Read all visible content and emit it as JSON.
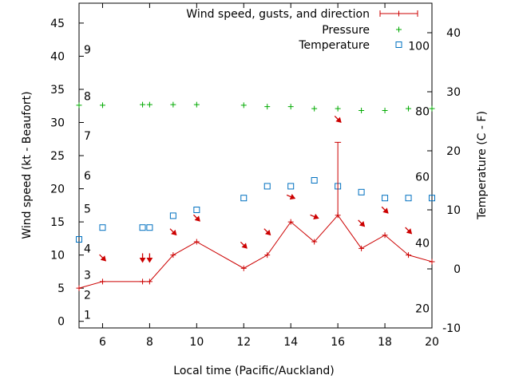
{
  "chart_data": {
    "type": "line",
    "xlabel": "Local time (Pacific/Auckland)",
    "ylabel_left": "Wind speed (kt - Beaufort)",
    "ylabel_right": "Temperature (C - F)",
    "xlim": [
      5,
      20
    ],
    "ylim_left": [
      -1,
      48
    ],
    "ylim_right": [
      -10,
      45
    ],
    "x_ticks": [
      6,
      8,
      10,
      12,
      14,
      16,
      18,
      20
    ],
    "y_left_ticks": [
      0,
      5,
      10,
      15,
      20,
      25,
      30,
      35,
      40,
      45
    ],
    "y_right_ticks": [
      -10,
      0,
      10,
      20,
      30,
      40
    ],
    "beaufort_labels": [
      {
        "label": "1",
        "kt": 1
      },
      {
        "label": "2",
        "kt": 4
      },
      {
        "label": "3",
        "kt": 7
      },
      {
        "label": "4",
        "kt": 11
      },
      {
        "label": "5",
        "kt": 17
      },
      {
        "label": "6",
        "kt": 22
      },
      {
        "label": "7",
        "kt": 28
      },
      {
        "label": "8",
        "kt": 34
      },
      {
        "label": "9",
        "kt": 41
      }
    ],
    "fahrenheit_labels": [
      {
        "label": "20",
        "c": -6.7
      },
      {
        "label": "40",
        "c": 4.4
      },
      {
        "label": "60",
        "c": 15.6
      },
      {
        "label": "80",
        "c": 26.7
      },
      {
        "label": "100",
        "c": 37.8
      }
    ],
    "legend": [
      {
        "label": "Wind speed, gusts, and direction",
        "color": "#cc0000",
        "marker": "errorbar"
      },
      {
        "label": "Pressure",
        "color": "#00aa00",
        "marker": "plus"
      },
      {
        "label": "Temperature",
        "color": "#0070c0",
        "marker": "square"
      }
    ],
    "series": [
      {
        "name": "Wind speed",
        "color": "#cc0000",
        "points": [
          {
            "x": 5,
            "y": 5
          },
          {
            "x": 6,
            "y": 6
          },
          {
            "x": 7.7,
            "y": 6
          },
          {
            "x": 8,
            "y": 6
          },
          {
            "x": 9,
            "y": 10
          },
          {
            "x": 10,
            "y": 12
          },
          {
            "x": 12,
            "y": 8
          },
          {
            "x": 13,
            "y": 10
          },
          {
            "x": 14,
            "y": 15
          },
          {
            "x": 15,
            "y": 12
          },
          {
            "x": 16,
            "y": 16,
            "gust": 27
          },
          {
            "x": 17,
            "y": 11
          },
          {
            "x": 18,
            "y": 13
          },
          {
            "x": 19,
            "y": 10
          },
          {
            "x": 20,
            "y": 9
          }
        ]
      },
      {
        "name": "Wind direction",
        "color": "#cc0000",
        "arrows": [
          {
            "x": 6,
            "y": 9.6,
            "dir": "SE"
          },
          {
            "x": 7.7,
            "y": 9.6,
            "dir": "S"
          },
          {
            "x": 8,
            "y": 9.6,
            "dir": "S"
          },
          {
            "x": 9,
            "y": 13.5,
            "dir": "SE"
          },
          {
            "x": 10,
            "y": 15.6,
            "dir": "SE"
          },
          {
            "x": 12,
            "y": 11.5,
            "dir": "SE"
          },
          {
            "x": 13,
            "y": 13.5,
            "dir": "SE"
          },
          {
            "x": 14,
            "y": 18.8,
            "dir": "ESE"
          },
          {
            "x": 15,
            "y": 15.8,
            "dir": "ESE"
          },
          {
            "x": 16,
            "y": 30.5,
            "dir": "SE"
          },
          {
            "x": 17,
            "y": 14.8,
            "dir": "SE"
          },
          {
            "x": 18,
            "y": 16.8,
            "dir": "SE"
          },
          {
            "x": 19,
            "y": 13.7,
            "dir": "SE"
          }
        ]
      },
      {
        "name": "Pressure",
        "color": "#00aa00",
        "points": [
          {
            "x": 5,
            "y": 32.6
          },
          {
            "x": 6,
            "y": 32.6
          },
          {
            "x": 7.7,
            "y": 32.7
          },
          {
            "x": 8,
            "y": 32.7
          },
          {
            "x": 9,
            "y": 32.7
          },
          {
            "x": 10,
            "y": 32.7
          },
          {
            "x": 12,
            "y": 32.6
          },
          {
            "x": 13,
            "y": 32.4
          },
          {
            "x": 14,
            "y": 32.4
          },
          {
            "x": 15,
            "y": 32.1
          },
          {
            "x": 16,
            "y": 32.1
          },
          {
            "x": 17,
            "y": 31.8
          },
          {
            "x": 18,
            "y": 31.8
          },
          {
            "x": 19,
            "y": 32.1
          },
          {
            "x": 20,
            "y": 32.1
          }
        ]
      },
      {
        "name": "Temperature",
        "color": "#0070c0",
        "axis": "right",
        "points": [
          {
            "x": 5,
            "y": 5
          },
          {
            "x": 6,
            "y": 7
          },
          {
            "x": 7.7,
            "y": 7
          },
          {
            "x": 8,
            "y": 7
          },
          {
            "x": 9,
            "y": 9
          },
          {
            "x": 10,
            "y": 10
          },
          {
            "x": 12,
            "y": 12
          },
          {
            "x": 13,
            "y": 14
          },
          {
            "x": 14,
            "y": 14
          },
          {
            "x": 15,
            "y": 15
          },
          {
            "x": 16,
            "y": 14
          },
          {
            "x": 17,
            "y": 13
          },
          {
            "x": 18,
            "y": 12
          },
          {
            "x": 19,
            "y": 12
          },
          {
            "x": 20,
            "y": 12
          }
        ]
      }
    ]
  }
}
